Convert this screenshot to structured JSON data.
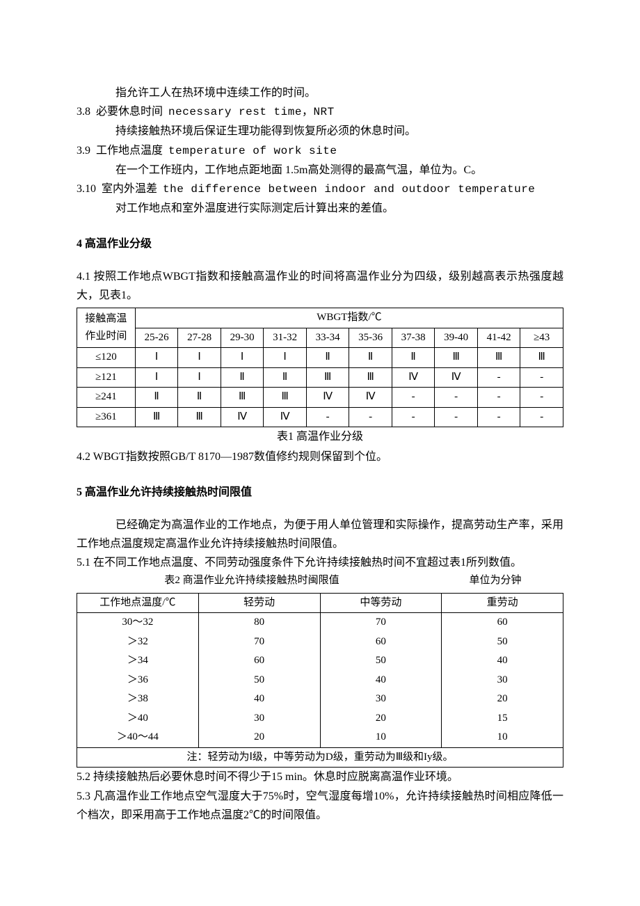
{
  "defs": {
    "def_37_text": "指允许工人在热环境中连续工作的时间。",
    "def_38_num": "3.8",
    "def_38_term_cn": "必要休息时间",
    "def_38_term_en": "necessary rest time，NRT",
    "def_38_text": "持续接触热环境后保证生理功能得到恢复所必须的休息时间。",
    "def_39_num": "3.9",
    "def_39_term_cn": "工作地点温度",
    "def_39_term_en": "temperature of work site",
    "def_39_text": "在一个工作班内，工作地点距地面 1.5m高处测得的最高气温，单位为。C。",
    "def_310_num": "3.10",
    "def_310_term_cn": "室内外温差",
    "def_310_term_en": "the difference between  indoor and outdoor temperature",
    "def_310_text": "对工作地点和室外温度进行实际测定后计算出来的差值。"
  },
  "sec4": {
    "heading": "4  高温作业分级",
    "p41": "4.1  按照工作地点WBGT指数和接触高温作业的时间将高温作业分为四级，级别越高表示热强度越大，见表1。",
    "table1": {
      "caption": "表1  高温作业分级",
      "row_header_top": "接触高温",
      "row_header_bottom": "作业时间",
      "col_group_header": "WBGT指数/℃",
      "columns": [
        "25-26",
        "27-28",
        "29-30",
        "31-32",
        "33-34",
        "35-36",
        "37-38",
        "39-40",
        "41-42",
        "≥43"
      ],
      "rows": [
        {
          "label": "≤120",
          "cells": [
            "Ⅰ",
            "Ⅰ",
            "Ⅰ",
            "Ⅰ",
            "Ⅱ",
            "Ⅱ",
            "Ⅱ",
            "Ⅲ",
            "Ⅲ",
            "Ⅲ"
          ]
        },
        {
          "label": "≥121",
          "cells": [
            "Ⅰ",
            "Ⅰ",
            "Ⅱ",
            "Ⅱ",
            "Ⅲ",
            "Ⅲ",
            "Ⅳ",
            "Ⅳ",
            "-",
            "-"
          ]
        },
        {
          "label": "≥241",
          "cells": [
            "Ⅱ",
            "Ⅱ",
            "Ⅲ",
            "Ⅲ",
            "Ⅳ",
            "Ⅳ",
            "-",
            "-",
            "-",
            "-"
          ]
        },
        {
          "label": "≥361",
          "cells": [
            "Ⅲ",
            "Ⅲ",
            "Ⅳ",
            "Ⅳ",
            "-",
            "-",
            "-",
            "-",
            "-",
            "-"
          ]
        }
      ]
    },
    "p42": "4.2  WBGT指数按照GB/T 8170—1987数值修约规则保留到个位。"
  },
  "sec5": {
    "heading": "5  高温作业允许持续接触热时间限值",
    "intro": "已经确定为高温作业的工作地点，为便于用人单位管理和实际操作，提高劳动生产率，采用工作地点温度规定高温作业允许持续接触热时间限值。",
    "p51": "5.1  在不同工作地点温度、不同劳动强度条件下允许持续接触热时间不宜超过表1所列数值。",
    "table2": {
      "caption_left": "表2  商温作业允许持续接触热时闽限值",
      "caption_right": "单位为分钟",
      "columns": [
        "工作地点温度/℃",
        "轻劳动",
        "中等劳动",
        "重劳动"
      ],
      "rows": [
        {
          "c0": "30～32",
          "c1": "80",
          "c2": "70",
          "c3": "60"
        },
        {
          "c0": "＞32",
          "c1": "70",
          "c2": "60",
          "c3": "50"
        },
        {
          "c0": "＞34",
          "c1": "60",
          "c2": "50",
          "c3": "40"
        },
        {
          "c0": "＞36",
          "c1": "50",
          "c2": "40",
          "c3": "30"
        },
        {
          "c0": "＞38",
          "c1": "40",
          "c2": "30",
          "c3": "20"
        },
        {
          "c0": "＞40",
          "c1": "30",
          "c2": "20",
          "c3": "15"
        },
        {
          "c0": "＞40～44",
          "c1": "20",
          "c2": "10",
          "c3": "10"
        }
      ],
      "note": "注：轻劳动为Ⅰ级，中等劳动为D级，重劳动为Ⅲ级和Iy级。"
    },
    "p52": "5.2  持续接触热后必要休息时间不得少于15 min。休息时应脱离高温作业环境。",
    "p53": "5.3  凡高温作业工作地点空气湿度大于75%时，空气湿度每增10%，允许持续接触热时间相应降低一个档次，即采用高于工作地点温度2℃的时间限值。"
  }
}
